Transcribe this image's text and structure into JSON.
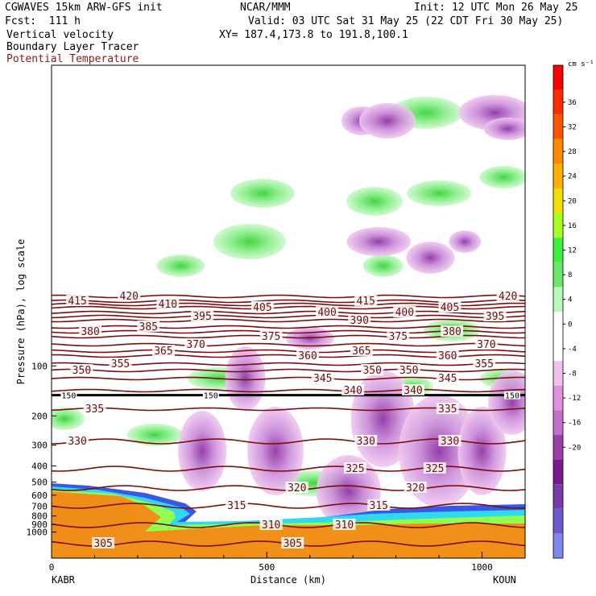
{
  "header": {
    "model": "CGWAVES 15km ARW-GFS init",
    "org": "NCAR/MMM",
    "init": "Init: 12 UTC Mon 26 May 25",
    "fcst": "Fcst:  111 h",
    "valid": "Valid: 03 UTC Sat 31 May 25 (22 CDT Fri 30 May 25)",
    "field1": "Vertical velocity",
    "field2": "Boundary Layer Tracer",
    "field3": "Potential Temperature",
    "xy": "XY= 187.4,173.8 to 191.8,100.1"
  },
  "chart_data": {
    "type": "heatmap",
    "xlabel": "Distance (km)",
    "ylabel": "Pressure (hPa), log scale",
    "x_ticks": [
      0,
      500,
      1000
    ],
    "y_ticks": [
      100,
      200,
      300,
      400,
      500,
      600,
      700,
      800,
      900,
      1000
    ],
    "x_endpoints": {
      "left": "KABR",
      "right": "KOUN"
    },
    "xlim": [
      0,
      1100
    ],
    "colorbar": {
      "unit": "cm s⁻¹",
      "levels": [
        36,
        32,
        28,
        24,
        20,
        16,
        12,
        8,
        4,
        0,
        -4,
        -8,
        -12,
        -16,
        -20
      ],
      "colors": [
        "#ff0000",
        "#ff2a00",
        "#ff5500",
        "#ff8a00",
        "#ffb000",
        "#f0e000",
        "#a8ff20",
        "#40f040",
        "#68e868",
        "#b8f8b8",
        "#ffffff",
        "#ffffff",
        "#f0c0f0",
        "#e090e0",
        "#c070c8",
        "#9a40a8",
        "#7a1890",
        "#7a3aa8",
        "#6a5ad0",
        "#7c88f0"
      ]
    },
    "theta_contours": [
      {
        "value": 305,
        "labels_at_km": [
          120,
          560
        ]
      },
      {
        "value": 310,
        "labels_at_km": [
          510,
          680
        ]
      },
      {
        "value": 315,
        "labels_at_km": [
          430,
          760
        ]
      },
      {
        "value": 320,
        "labels_at_km": [
          570,
          845
        ]
      },
      {
        "value": 325,
        "labels_at_km": [
          705,
          890
        ]
      },
      {
        "value": 330,
        "labels_at_km": [
          60,
          730,
          925
        ]
      },
      {
        "value": 335,
        "labels_at_km": [
          100,
          920
        ]
      },
      {
        "value": 340,
        "labels_at_km": [
          700,
          840
        ]
      },
      {
        "value": 345,
        "labels_at_km": [
          630,
          920
        ]
      },
      {
        "value": 350,
        "labels_at_km": [
          70,
          745,
          830
        ]
      },
      {
        "value": 355,
        "labels_at_km": [
          160,
          1005
        ]
      },
      {
        "value": 360,
        "labels_at_km": [
          595,
          920
        ]
      },
      {
        "value": 365,
        "labels_at_km": [
          260,
          720
        ]
      },
      {
        "value": 370,
        "labels_at_km": [
          335,
          1010
        ]
      },
      {
        "value": 375,
        "labels_at_km": [
          510,
          805
        ]
      },
      {
        "value": 380,
        "labels_at_km": [
          90,
          930
        ]
      },
      {
        "value": 385,
        "labels_at_km": [
          225
        ]
      },
      {
        "value": 390,
        "labels_at_km": [
          715
        ]
      },
      {
        "value": 395,
        "labels_at_km": [
          350,
          1030
        ]
      },
      {
        "value": 400,
        "labels_at_km": [
          640,
          820
        ]
      },
      {
        "value": 405,
        "labels_at_km": [
          490,
          925
        ]
      },
      {
        "value": 410,
        "labels_at_km": [
          270
        ]
      },
      {
        "value": 415,
        "labels_at_km": [
          60,
          730
        ]
      },
      {
        "value": 420,
        "labels_at_km": [
          180,
          1060
        ]
      }
    ],
    "tropopause_marker": {
      "value": 150,
      "labels_at_km": [
        40,
        370,
        1070
      ]
    }
  }
}
